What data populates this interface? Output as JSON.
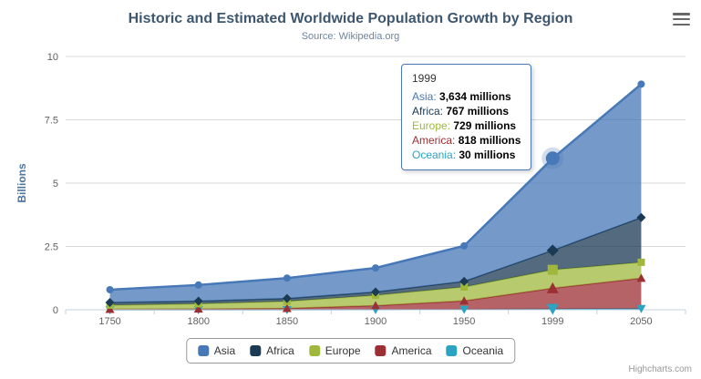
{
  "chart_data": {
    "type": "area",
    "stacking": "normal",
    "title": "Historic and Estimated Worldwide Population Growth by Region",
    "subtitle": "Source: Wikipedia.org",
    "ylabel": "Billions",
    "xlabel": "",
    "unit": "millions",
    "ylim": [
      0,
      10
    ],
    "y_ticks": [
      0,
      2.5,
      5,
      7.5,
      10
    ],
    "categories": [
      "1750",
      "1800",
      "1850",
      "1900",
      "1950",
      "1999",
      "2050"
    ],
    "grid": true,
    "legend_position": "bottom",
    "hover_category": "1999",
    "series": [
      {
        "name": "Asia",
        "color": "#4778b7",
        "marker": "circle",
        "values": [
          502,
          635,
          809,
          947,
          1402,
          3634,
          5268
        ]
      },
      {
        "name": "Africa",
        "color": "#1b3a54",
        "marker": "diamond",
        "values": [
          106,
          107,
          111,
          133,
          221,
          767,
          1766
        ]
      },
      {
        "name": "Europe",
        "color": "#9fb83c",
        "marker": "square",
        "values": [
          163,
          203,
          276,
          408,
          547,
          729,
          628
        ]
      },
      {
        "name": "America",
        "color": "#9c2f33",
        "marker": "triangle",
        "values": [
          18,
          31,
          54,
          156,
          339,
          818,
          1201
        ]
      },
      {
        "name": "Oceania",
        "color": "#2ba3c3",
        "marker": "triangle-down",
        "values": [
          2,
          2,
          2,
          6,
          13,
          30,
          46
        ]
      }
    ]
  },
  "tooltip": {
    "header": "1999",
    "rows": [
      {
        "name": "Asia",
        "value": "3,634 millions"
      },
      {
        "name": "Africa",
        "value": "767 millions"
      },
      {
        "name": "Europe",
        "value": "729 millions"
      },
      {
        "name": "America",
        "value": "818 millions"
      },
      {
        "name": "Oceania",
        "value": "30 millions"
      }
    ]
  },
  "credits": {
    "label": "Highcharts.com"
  },
  "controls": {
    "menu_icon": "hamburger-menu-icon"
  }
}
